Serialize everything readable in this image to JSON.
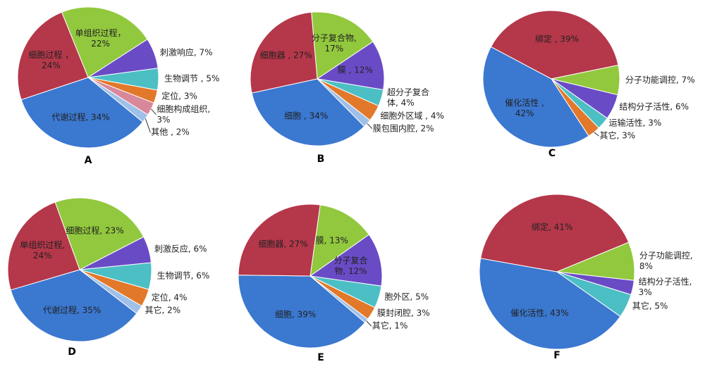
{
  "chart_data": [
    {
      "type": "pie",
      "title": "A",
      "categories": [
        "单组织过程，\n22%",
        "刺激响应, 7%",
        "生物调节 , 5%",
        "定位, 3%",
        "细胞构成组织,\n3%",
        "其他 , 2%",
        "代谢过程, 34%",
        "细胞过程 ，\n24%"
      ],
      "values": [
        22,
        7,
        5,
        3,
        3,
        2,
        34,
        24
      ],
      "colors": [
        "#92c83e",
        "#6a4bc6",
        "#4bbfc4",
        "#e2782a",
        "#d9879a",
        "#9fc0e8",
        "#3b78d0",
        "#b5374a"
      ]
    },
    {
      "type": "pie",
      "title": "B",
      "categories": [
        "分子复合物,\n17%",
        "膜 , 12%",
        "超分子复合\n体, 4%",
        "细胞外区域 , 4%",
        "膜包围内腔, 2%",
        "细胞 , 34%",
        "细胞器 , 27%"
      ],
      "values": [
        17,
        12,
        4,
        4,
        2,
        34,
        27
      ],
      "colors": [
        "#92c83e",
        "#6a4bc6",
        "#4bbfc4",
        "#e2782a",
        "#9fc0e8",
        "#3b78d0",
        "#b5374a"
      ]
    },
    {
      "type": "pie",
      "title": "C",
      "categories": [
        "绑定 , 39%",
        "分子功能调控, 7%",
        "结构分子活性, 6%",
        "运输活性, 3%",
        "其它, 3%",
        "催化活性 ,\n42%"
      ],
      "values": [
        39,
        7,
        6,
        3,
        3,
        42
      ],
      "colors": [
        "#b5374a",
        "#92c83e",
        "#6a4bc6",
        "#4bbfc4",
        "#e2782a",
        "#3b78d0"
      ]
    },
    {
      "type": "pie",
      "title": "D",
      "categories": [
        "细胞过程, 23%",
        "刺激反应, 6%",
        "生物调节, 6%",
        "定位, 4%",
        "其它, 2%",
        "代谢过程, 35%",
        "单组织过程,\n24%"
      ],
      "values": [
        23,
        6,
        6,
        4,
        2,
        35,
        24
      ],
      "colors": [
        "#92c83e",
        "#6a4bc6",
        "#4bbfc4",
        "#e2782a",
        "#9fc0e8",
        "#3b78d0",
        "#b5374a"
      ]
    },
    {
      "type": "pie",
      "title": "E",
      "categories": [
        "膜, 13%",
        "分子复合\n物, 12%",
        "胞外区, 5%",
        "膜封闭腔, 3%",
        "其它, 1%",
        "细胞, 39%",
        "细胞器, 27%"
      ],
      "values": [
        13,
        12,
        5,
        3,
        1,
        39,
        27
      ],
      "colors": [
        "#92c83e",
        "#6a4bc6",
        "#4bbfc4",
        "#e2782a",
        "#9fc0e8",
        "#3b78d0",
        "#b5374a"
      ]
    },
    {
      "type": "pie",
      "title": "F",
      "categories": [
        "绑定, 41%",
        "分子功能调控,\n8%",
        "结构分子活性,\n3%",
        "其它, 5%",
        "催化活性, 43%"
      ],
      "values": [
        41,
        8,
        3,
        5,
        43
      ],
      "colors": [
        "#b5374a",
        "#92c83e",
        "#6a4bc6",
        "#4bbfc4",
        "#3b78d0"
      ]
    }
  ]
}
